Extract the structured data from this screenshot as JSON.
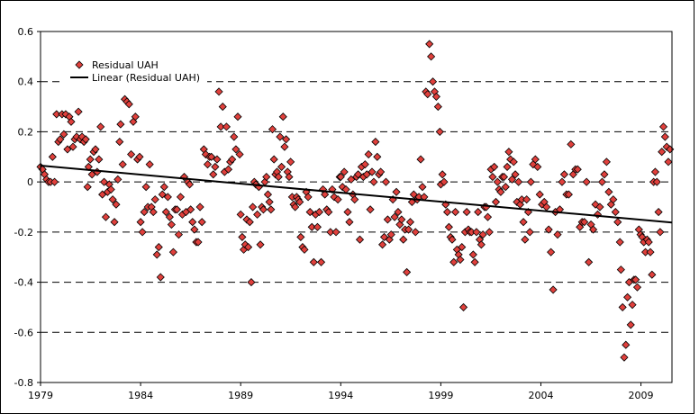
{
  "chart_data": {
    "type": "scatter",
    "title": "",
    "xlabel": "",
    "ylabel": "",
    "xlim": [
      1979,
      2010.55
    ],
    "ylim": [
      -0.8,
      0.6
    ],
    "x_ticks": [
      1979,
      1984,
      1989,
      1994,
      1999,
      2004,
      2009
    ],
    "y_ticks": [
      0.6,
      0.4,
      0.2,
      0,
      -0.2,
      -0.4,
      -0.6,
      -0.8
    ],
    "y_tick_labels": [
      "0.6",
      "0.4",
      "0.2",
      "0",
      "-0.2",
      "-0.4",
      "-0.6",
      "-0.8"
    ],
    "x_tick_labels": [
      "1979",
      "1984",
      "1989",
      "1994",
      "1999",
      "2004",
      "2009"
    ],
    "grid": "horizontal dashed",
    "legend": {
      "placement": "top-left",
      "entries": [
        "Residual UAH",
        "Linear (Residual UAH)"
      ]
    },
    "colors": {
      "marker": "#e0403c",
      "marker_edge": "#000000",
      "trend": "#000000"
    },
    "series": [
      {
        "name": "Residual UAH",
        "segments": [
          {
            "from": 1979.0,
            "to": 1979.7,
            "values": [
              0.06,
              0.05,
              0.03,
              0.01,
              0.0,
              0.0,
              0.1,
              0.0
            ]
          },
          {
            "from": 1979.8,
            "to": 1981.35,
            "values": [
              0.27,
              0.16,
              0.17,
              0.27,
              0.19,
              0.27,
              0.13,
              0.26,
              0.24,
              0.14,
              0.17,
              0.18,
              0.28,
              0.17,
              0.18,
              0.16,
              0.17,
              -0.02
            ]
          },
          {
            "from": 1981.4,
            "to": 1982.95,
            "values": [
              0.06,
              0.09,
              0.03,
              0.12,
              0.13,
              0.04,
              0.09,
              0.22,
              -0.05,
              0.0,
              -0.14,
              -0.04,
              -0.01,
              -0.03,
              -0.07,
              -0.16,
              -0.09,
              0.01,
              0.16
            ]
          },
          {
            "from": 1983.0,
            "to": 1983.95,
            "values": [
              0.23,
              0.07,
              0.33,
              0.32,
              0.31,
              0.11,
              0.24,
              0.26,
              0.09,
              0.1
            ]
          },
          {
            "from": 1984.0,
            "to": 1986.45,
            "values": [
              -0.16,
              -0.2,
              -0.12,
              -0.02,
              -0.1,
              0.07,
              -0.1,
              -0.12,
              -0.07,
              -0.29,
              -0.26,
              -0.38,
              -0.05,
              -0.02,
              -0.12,
              -0.06,
              -0.14,
              -0.17,
              -0.28,
              -0.11,
              -0.11,
              -0.21,
              -0.06,
              -0.13,
              0.02,
              -0.12,
              0.0,
              -0.01
            ]
          },
          {
            "from": 1986.5,
            "to": 1988.95,
            "values": [
              -0.11,
              -0.16,
              -0.19,
              -0.24,
              -0.24,
              -0.1,
              -0.16,
              0.13,
              0.11,
              0.07,
              0.1,
              0.1,
              0.03,
              0.06,
              0.09,
              0.36,
              0.22,
              0.3,
              0.04,
              0.22,
              0.05,
              0.08,
              0.09,
              0.18,
              0.13,
              0.26,
              0.11
            ]
          },
          {
            "from": 1989.0,
            "to": 1991.95,
            "values": [
              -0.13,
              -0.22,
              -0.27,
              -0.25,
              -0.15,
              -0.26,
              -0.16,
              -0.4,
              -0.1,
              0.0,
              -0.01,
              -0.13,
              -0.02,
              -0.25,
              -0.1,
              -0.11,
              0.0,
              0.02,
              -0.05,
              -0.08,
              -0.11,
              0.21,
              0.09,
              0.03,
              0.04,
              0.02,
              0.18,
              0.06,
              0.26,
              0.14,
              0.17,
              0.04,
              0.02,
              0.08,
              -0.06,
              -0.09,
              -0.1,
              -0.06,
              -0.07,
              -0.08
            ]
          },
          {
            "from": 1992.0,
            "to": 1993.95,
            "values": [
              -0.22,
              -0.26,
              -0.27,
              -0.04,
              -0.06,
              -0.12,
              -0.18,
              -0.32,
              -0.13,
              -0.18,
              -0.12,
              -0.32,
              -0.03,
              -0.05,
              -0.11,
              -0.12,
              -0.2,
              -0.03,
              -0.06,
              -0.2,
              -0.07,
              0.02
            ]
          },
          {
            "from": 1994.0,
            "to": 1998.95,
            "values": [
              0.02,
              -0.02,
              0.04,
              -0.03,
              -0.12,
              -0.16,
              0.01,
              -0.05,
              -0.07,
              0.02,
              0.03,
              -0.23,
              0.06,
              0.02,
              0.07,
              0.03,
              0.11,
              -0.11,
              0.04,
              0.0,
              0.16,
              0.1,
              0.03,
              0.04,
              -0.25,
              -0.22,
              0.0,
              -0.15,
              -0.23,
              -0.21,
              -0.07,
              -0.14,
              -0.04,
              -0.12,
              -0.17,
              -0.15,
              -0.23,
              -0.19,
              -0.36,
              -0.19,
              -0.16,
              -0.08,
              -0.05,
              -0.2,
              -0.07,
              -0.06,
              0.09,
              -0.02,
              -0.06,
              0.36,
              0.35,
              0.55,
              0.5,
              0.4,
              0.36,
              0.34,
              0.3,
              0.2
            ]
          },
          {
            "from": 1999.0,
            "to": 2003.45,
            "values": [
              -0.01,
              0.03,
              0.0,
              -0.09,
              -0.12,
              -0.18,
              -0.22,
              -0.23,
              -0.32,
              -0.12,
              -0.27,
              -0.29,
              -0.31,
              -0.26,
              -0.5,
              -0.2,
              -0.12,
              -0.19,
              -0.2,
              -0.2,
              -0.29,
              -0.32,
              -0.2,
              -0.12,
              -0.23,
              -0.25,
              -0.21,
              -0.1,
              -0.1,
              -0.14,
              -0.2,
              0.05,
              0.02,
              0.06,
              -0.08,
              0.0,
              -0.03,
              -0.04,
              0.02,
              0.02,
              -0.02,
              0.06,
              0.12,
              0.09,
              0.01,
              0.08,
              0.03,
              -0.08,
              0.0,
              -0.09,
              -0.07,
              -0.16,
              -0.23,
              -0.07,
              -0.12,
              -0.2
            ]
          },
          {
            "from": 2003.5,
            "to": 2007.95,
            "values": [
              0.0,
              0.07,
              0.09,
              0.06,
              -0.05,
              -0.09,
              -0.08,
              -0.1,
              -0.19,
              -0.28,
              -0.43,
              -0.12,
              -0.21,
              -0.11,
              0.0,
              0.03,
              -0.05,
              -0.05,
              0.15,
              0.03,
              0.05,
              0.05,
              -0.18,
              -0.16,
              -0.16,
              0.0,
              -0.32,
              -0.17,
              -0.19,
              -0.09,
              -0.13,
              -0.1,
              0.0,
              0.03,
              0.08,
              -0.04,
              -0.09,
              -0.07,
              -0.12,
              -0.16,
              -0.24
            ]
          },
          {
            "from": 2008.0,
            "to": 2010.45,
            "values": [
              -0.35,
              -0.5,
              -0.7,
              -0.65,
              -0.46,
              -0.4,
              -0.57,
              -0.49,
              -0.39,
              -0.39,
              -0.42,
              -0.19,
              -0.21,
              -0.22,
              -0.24,
              -0.28,
              -0.23,
              -0.24,
              -0.28,
              -0.37,
              0.0,
              0.04,
              0.0,
              -0.12,
              -0.2,
              0.12,
              0.22,
              0.18,
              0.14,
              0.08,
              0.13
            ]
          }
        ]
      },
      {
        "name": "Linear (Residual UAH)",
        "type": "line",
        "x": [
          1979.0,
          2010.55
        ],
        "y": [
          0.065,
          -0.162
        ]
      }
    ]
  }
}
